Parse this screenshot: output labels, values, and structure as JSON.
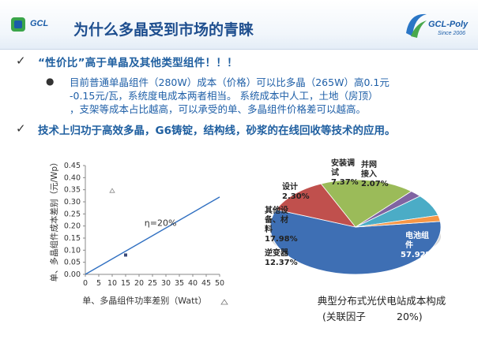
{
  "header": {
    "logo_left": "GCL",
    "title": "为什么多晶受到市场的青睐",
    "logo_right_name": "GCL-Poly",
    "logo_right_since": "Since 2006"
  },
  "bullets": {
    "b1": "“性价比”高于单晶及其他类型组件！！！",
    "b2_lines": [
      "目前普通单晶组件（280W）成本（价格）可以比多晶（265W）高0.1元",
      "-0.15元/瓦，系统度电成本两者相当。 系统成本中人工，土地（房顶）",
      "，支架等成本占比越高，可以承受的单、多晶组件价格差可以越高。"
    ],
    "b3": "技术上归功于高效多晶，G6铸锭，结构线，砂浆的在线回收等技术的应用。"
  },
  "chart_data": [
    {
      "type": "line",
      "xlabel": "单、多晶组件功率差别（Watt）",
      "ylabel": "单、多晶组件成本差别（元/Wp）",
      "xlim": [
        0,
        50
      ],
      "ylim": [
        0,
        0.45
      ],
      "x_ticks": [
        0,
        5,
        10,
        15,
        20,
        25,
        30,
        35,
        40,
        45,
        50
      ],
      "y_ticks": [
        0,
        0.05,
        0.1,
        0.15,
        0.2,
        0.25,
        0.3,
        0.35,
        0.4,
        0.45
      ],
      "series": [
        {
          "values": [
            [
              0,
              0
            ],
            [
              50,
              0.32
            ]
          ]
        }
      ],
      "points": [
        {
          "x": 10,
          "y": 0.345,
          "marker": "triangle"
        },
        {
          "x": 15,
          "y": 0.08,
          "marker": "square"
        }
      ],
      "annotations": [
        {
          "x": 22,
          "y": 0.2,
          "text": "η=20%"
        }
      ],
      "grid": false
    },
    {
      "type": "pie",
      "title": "典型分布式光伏电站成本构成",
      "subtitle_prefix": "(关联因子",
      "subtitle_suffix": "20%)",
      "slices": [
        {
          "name": "电池组件",
          "value": 57.92,
          "label": "57.92%",
          "color": "#3e6fb4"
        },
        {
          "name": "逆变器",
          "value": 12.37,
          "label": "12.37%",
          "color": "#c0504d"
        },
        {
          "name": "其他设备、材料",
          "value": 17.98,
          "label": "17.98%",
          "color": "#9bbb59"
        },
        {
          "name": "设计",
          "value": 2.3,
          "label": "2.30%",
          "color": "#8064a2"
        },
        {
          "name": "安装调试",
          "value": 7.37,
          "label": "7.37%",
          "color": "#4bacc6"
        },
        {
          "name": "并网接入",
          "value": 2.07,
          "label": "2.07%",
          "color": "#f79646"
        }
      ]
    }
  ],
  "colors": {
    "title_blue": "#1f4f8f",
    "text_blue": "#2060a8",
    "line": "#2f6fc1"
  }
}
